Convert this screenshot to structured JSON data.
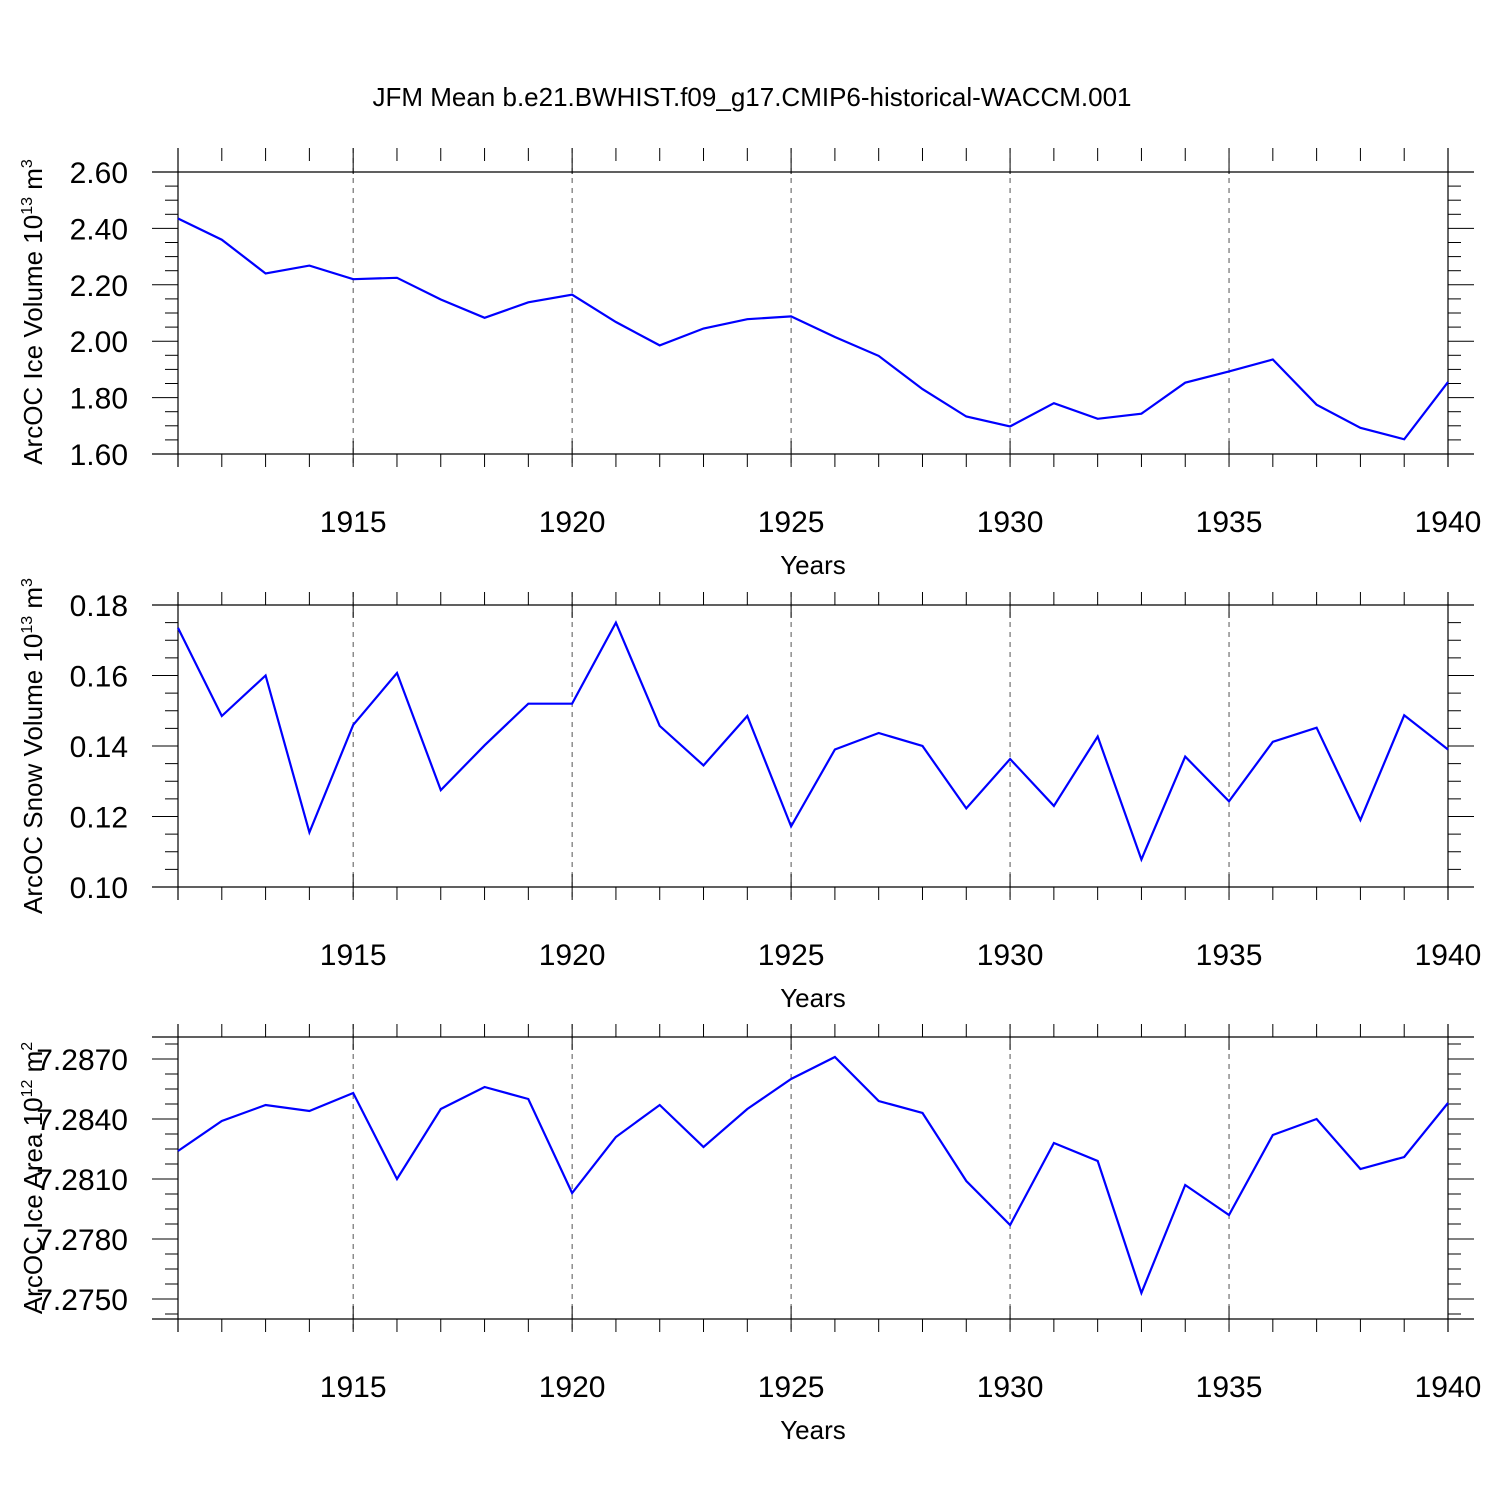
{
  "title": "JFM Mean b.e21.BWHIST.f09_g17.CMIP6-historical-WACCM.001",
  "chart_data": [
    {
      "type": "line",
      "name": "ice-volume",
      "ylabel": "ArcOC Ice Volume 10",
      "ylabel_sup": "13",
      "ylabel_unit": " m",
      "ylabel_unit_sup": "3",
      "xlabel": "Years",
      "xlim": [
        1911,
        1940
      ],
      "ylim": [
        1.6,
        2.6
      ],
      "yticks": [
        1.6,
        1.8,
        2.0,
        2.2,
        2.4,
        2.6
      ],
      "ytick_labels": [
        "1.60",
        "1.80",
        "2.00",
        "2.20",
        "2.40",
        "2.60"
      ],
      "xticks": [
        1915,
        1920,
        1925,
        1930,
        1935,
        1940
      ],
      "xtick_labels": [
        "1915",
        "1920",
        "1925",
        "1930",
        "1935",
        "1940"
      ],
      "x": [
        1911,
        1912,
        1913,
        1914,
        1915,
        1916,
        1917,
        1918,
        1919,
        1920,
        1921,
        1922,
        1923,
        1924,
        1925,
        1926,
        1927,
        1928,
        1929,
        1930,
        1931,
        1932,
        1933,
        1934,
        1935,
        1936,
        1937,
        1938,
        1939,
        1940
      ],
      "values": [
        2.435,
        2.36,
        2.24,
        2.268,
        2.22,
        2.225,
        2.148,
        2.083,
        2.138,
        2.165,
        2.068,
        1.985,
        2.045,
        2.078,
        2.088,
        2.015,
        1.948,
        1.83,
        1.733,
        1.698,
        1.78,
        1.725,
        1.743,
        1.853,
        1.893,
        1.935,
        1.775,
        1.693,
        1.652,
        1.855
      ],
      "color": "#0000ff"
    },
    {
      "type": "line",
      "name": "snow-volume",
      "ylabel": "ArcOC Snow Volume 10",
      "ylabel_sup": "13",
      "ylabel_unit": " m",
      "ylabel_unit_sup": "3",
      "xlabel": "Years",
      "xlim": [
        1911,
        1940
      ],
      "ylim": [
        0.1,
        0.18
      ],
      "yticks": [
        0.1,
        0.12,
        0.14,
        0.16,
        0.18
      ],
      "ytick_labels": [
        "0.10",
        "0.12",
        "0.14",
        "0.16",
        "0.18"
      ],
      "xticks": [
        1915,
        1920,
        1925,
        1930,
        1935,
        1940
      ],
      "xtick_labels": [
        "1915",
        "1920",
        "1925",
        "1930",
        "1935",
        "1940"
      ],
      "x": [
        1911,
        1912,
        1913,
        1914,
        1915,
        1916,
        1917,
        1918,
        1919,
        1920,
        1921,
        1922,
        1923,
        1924,
        1925,
        1926,
        1927,
        1928,
        1929,
        1930,
        1931,
        1932,
        1933,
        1934,
        1935,
        1936,
        1937,
        1938,
        1939,
        1940
      ],
      "values": [
        0.1735,
        0.1485,
        0.16,
        0.1155,
        0.146,
        0.1607,
        0.1275,
        0.1402,
        0.152,
        0.152,
        0.175,
        0.1457,
        0.1345,
        0.1485,
        0.1172,
        0.139,
        0.1437,
        0.14,
        0.1223,
        0.1363,
        0.123,
        0.1427,
        0.1078,
        0.137,
        0.1243,
        0.1412,
        0.1452,
        0.119,
        0.1487,
        0.139
      ],
      "color": "#0000ff"
    },
    {
      "type": "line",
      "name": "ice-area",
      "ylabel": "ArcOC Ice Area 10",
      "ylabel_sup": "12",
      "ylabel_unit": " m",
      "ylabel_unit_sup": "2",
      "xlabel": "Years",
      "xlim": [
        1911,
        1940
      ],
      "ylim": [
        7.274,
        7.2881
      ],
      "yticks": [
        7.275,
        7.278,
        7.281,
        7.284,
        7.287
      ],
      "ytick_labels": [
        "7.2750",
        "7.2780",
        "7.2810",
        "7.2840",
        "7.2870"
      ],
      "xticks": [
        1915,
        1920,
        1925,
        1930,
        1935,
        1940
      ],
      "xtick_labels": [
        "1915",
        "1920",
        "1925",
        "1930",
        "1935",
        "1940"
      ],
      "x": [
        1911,
        1912,
        1913,
        1914,
        1915,
        1916,
        1917,
        1918,
        1919,
        1920,
        1921,
        1922,
        1923,
        1924,
        1925,
        1926,
        1927,
        1928,
        1929,
        1930,
        1931,
        1932,
        1933,
        1934,
        1935,
        1936,
        1937,
        1938,
        1939,
        1940
      ],
      "values": [
        7.2824,
        7.2839,
        7.2847,
        7.2844,
        7.2853,
        7.281,
        7.2845,
        7.2856,
        7.285,
        7.2803,
        7.2831,
        7.2847,
        7.2826,
        7.2845,
        7.286,
        7.2871,
        7.2849,
        7.2843,
        7.2809,
        7.2787,
        7.2828,
        7.2819,
        7.2753,
        7.2807,
        7.2792,
        7.2832,
        7.284,
        7.2815,
        7.2821,
        7.2848
      ],
      "color": "#0000ff"
    }
  ]
}
